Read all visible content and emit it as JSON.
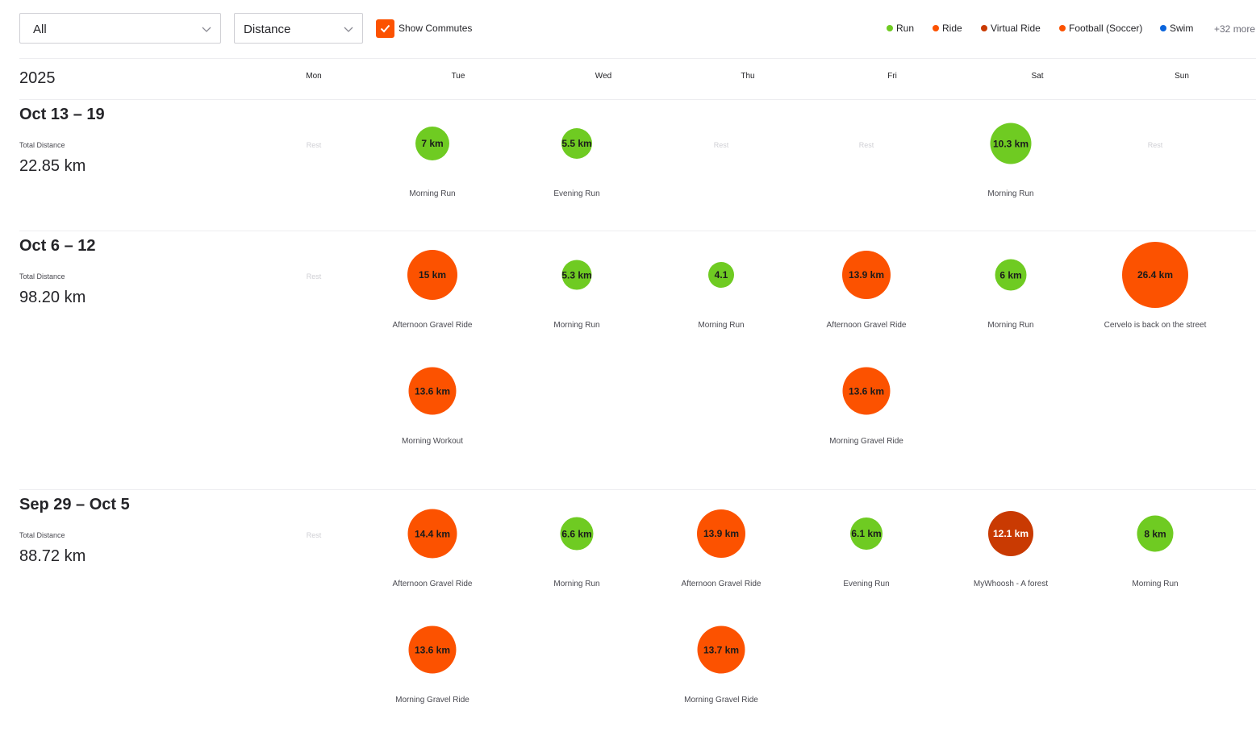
{
  "filters": {
    "activity_type": "All",
    "metric": "Distance",
    "show_commutes_label": "Show Commutes",
    "show_commutes_checked": true
  },
  "legend": {
    "items": [
      {
        "label": "Run",
        "color": "#6fcb22"
      },
      {
        "label": "Ride",
        "color": "#fc5200"
      },
      {
        "label": "Virtual Ride",
        "color": "#c93a02"
      },
      {
        "label": "Football (Soccer)",
        "color": "#fc5200"
      },
      {
        "label": "Swim",
        "color": "#0a64dc"
      }
    ],
    "more": "+32 more"
  },
  "calendar": {
    "year": "2025",
    "days": [
      "Mon",
      "Tue",
      "Wed",
      "Thu",
      "Fri",
      "Sat",
      "Sun"
    ],
    "rest_label": "Rest"
  },
  "weeks": [
    {
      "title": "Oct 13 – 19",
      "total_label": "Total Distance",
      "total_value": "22.85 km",
      "rest_days": [
        0,
        3,
        4,
        6
      ],
      "activities": [
        {
          "day": 1,
          "row": 0,
          "label": "7 km",
          "km": 7,
          "name": "Morning Run",
          "type": "run"
        },
        {
          "day": 2,
          "row": 0,
          "label": "5.5 km",
          "km": 5.5,
          "name": "Evening Run",
          "type": "run"
        },
        {
          "day": 5,
          "row": 0,
          "label": "10.3 km",
          "km": 10.3,
          "name": "Morning Run",
          "type": "run"
        }
      ]
    },
    {
      "title": "Oct 6 – 12",
      "total_label": "Total Distance",
      "total_value": "98.20 km",
      "rest_days": [
        0
      ],
      "activities": [
        {
          "day": 1,
          "row": 0,
          "label": "15 km",
          "km": 15,
          "name": "Afternoon Gravel Ride",
          "type": "ride"
        },
        {
          "day": 2,
          "row": 0,
          "label": "5.3 km",
          "km": 5.3,
          "name": "Morning Run",
          "type": "run"
        },
        {
          "day": 3,
          "row": 0,
          "label": "4.1",
          "km": 4.1,
          "name": "Morning Run",
          "type": "run"
        },
        {
          "day": 4,
          "row": 0,
          "label": "13.9 km",
          "km": 13.9,
          "name": "Afternoon Gravel Ride",
          "type": "ride"
        },
        {
          "day": 5,
          "row": 0,
          "label": "6 km",
          "km": 6,
          "name": "Morning Run",
          "type": "run"
        },
        {
          "day": 6,
          "row": 0,
          "label": "26.4 km",
          "km": 26.4,
          "name": "Cervelo is back on the street",
          "type": "ride"
        },
        {
          "day": 1,
          "row": 1,
          "label": "13.6 km",
          "km": 13.6,
          "name": "Morning Workout",
          "type": "ride"
        },
        {
          "day": 4,
          "row": 1,
          "label": "13.6 km",
          "km": 13.6,
          "name": "Morning Gravel Ride",
          "type": "ride"
        }
      ]
    },
    {
      "title": "Sep 29 – Oct 5",
      "total_label": "Total Distance",
      "total_value": "88.72 km",
      "rest_days": [
        0
      ],
      "activities": [
        {
          "day": 1,
          "row": 0,
          "label": "14.4 km",
          "km": 14.4,
          "name": "Afternoon Gravel Ride",
          "type": "ride"
        },
        {
          "day": 2,
          "row": 0,
          "label": "6.6 km",
          "km": 6.6,
          "name": "Morning Run",
          "type": "run"
        },
        {
          "day": 3,
          "row": 0,
          "label": "13.9 km",
          "km": 13.9,
          "name": "Afternoon Gravel Ride",
          "type": "ride"
        },
        {
          "day": 4,
          "row": 0,
          "label": "6.1 km",
          "km": 6.1,
          "name": "Evening Run",
          "type": "run"
        },
        {
          "day": 5,
          "row": 0,
          "label": "12.1 km",
          "km": 12.1,
          "name": "MyWhoosh - A forest",
          "type": "virtual"
        },
        {
          "day": 6,
          "row": 0,
          "label": "8 km",
          "km": 8,
          "name": "Morning Run",
          "type": "run"
        },
        {
          "day": 1,
          "row": 1,
          "label": "13.6 km",
          "km": 13.6,
          "name": "Morning Gravel Ride",
          "type": "ride"
        },
        {
          "day": 3,
          "row": 1,
          "label": "13.7 km",
          "km": 13.7,
          "name": "Morning Gravel Ride",
          "type": "ride"
        }
      ]
    }
  ]
}
